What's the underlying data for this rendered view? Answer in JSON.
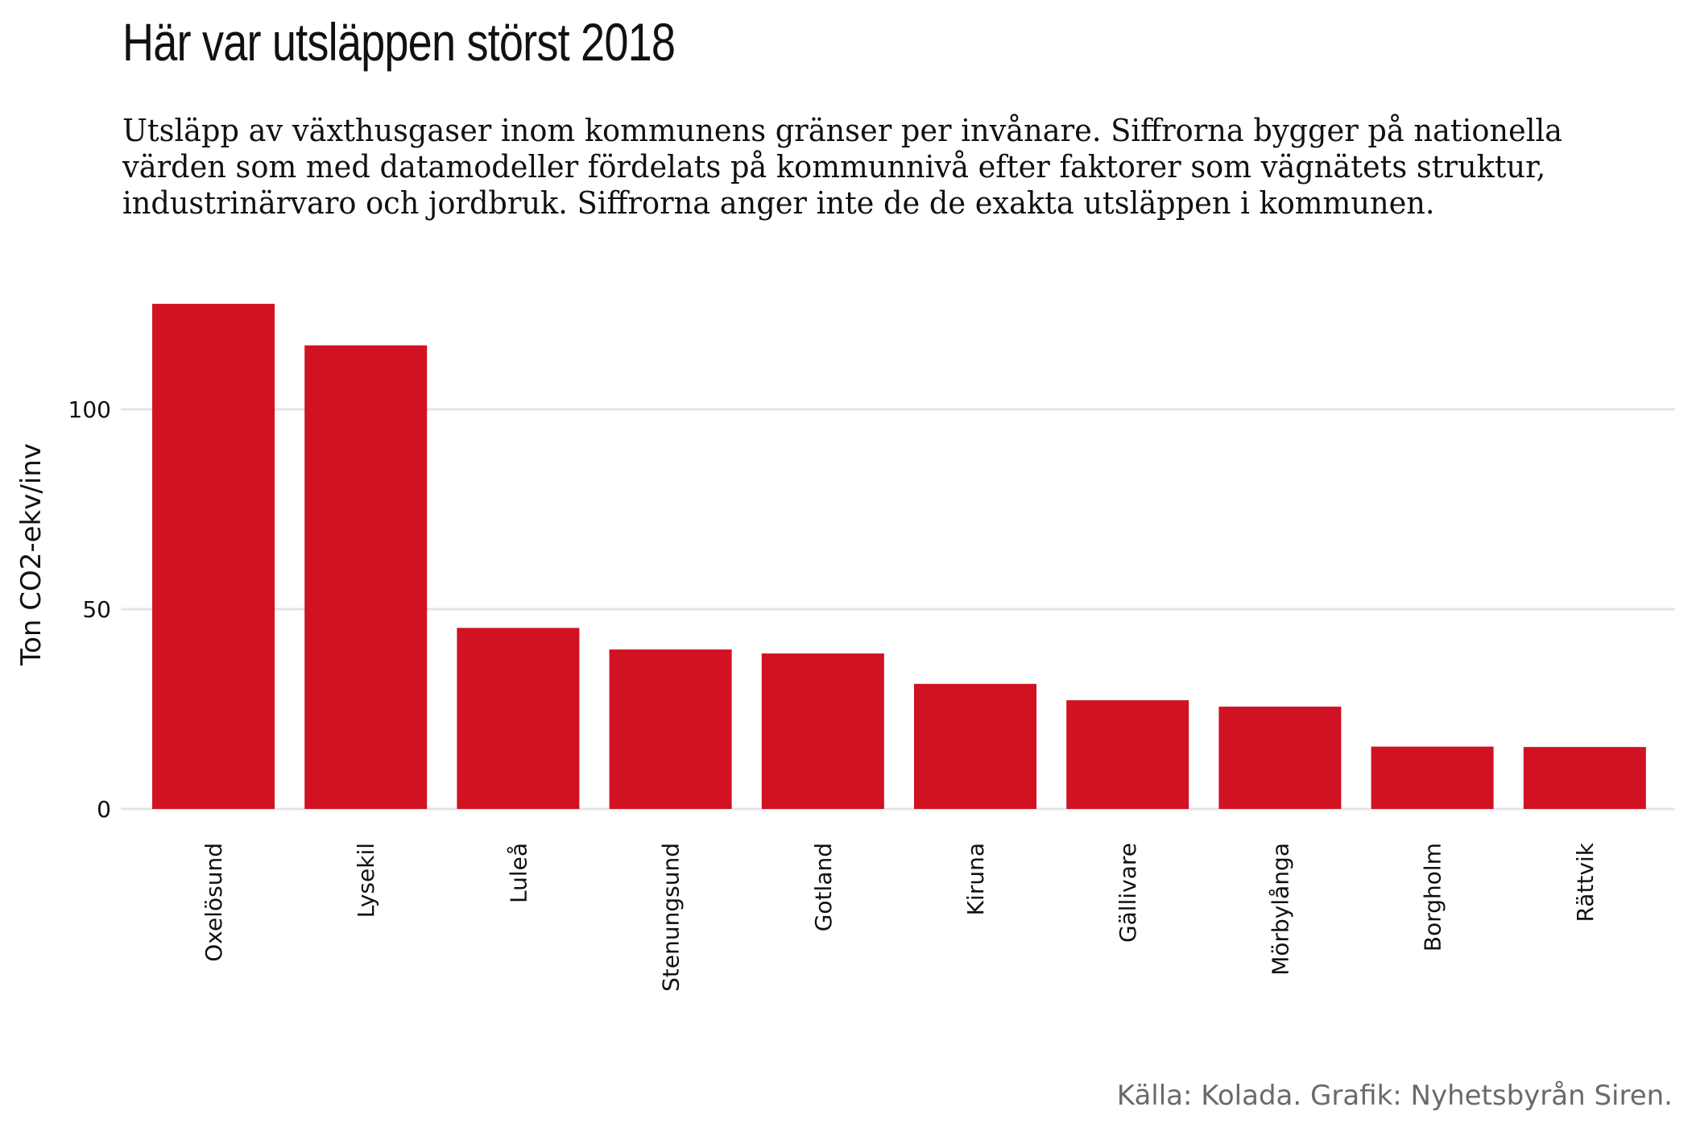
{
  "title": "Här var utsläppen störst 2018",
  "subtitle": [
    "Utsläpp av växthusgaser inom kommunens gränser per invånare. Siffrorna bygger på nationella",
    "värden som med datamodeller fördelats på kommunnivå efter faktorer som vägnätets struktur,",
    "industrinärvaro och jordbruk. Siffrorna anger inte de de exakta utsläppen i kommunen."
  ],
  "caption": "Källa: Kolada. Grafik: Nyhetsbyrån Siren.",
  "colors": {
    "bar": "#d01223",
    "grid": "#e4e4e4",
    "text": "#111111",
    "caption": "#6a6a6a"
  },
  "chart_data": {
    "type": "bar",
    "categories": [
      "Oxelösund",
      "Lysekil",
      "Luleå",
      "Stenungsund",
      "Gotland",
      "Kiruna",
      "Gällivare",
      "Mörbylånga",
      "Borgholm",
      "Rättvik"
    ],
    "values": [
      126.4,
      116.0,
      45.3,
      39.9,
      38.9,
      31.3,
      27.2,
      25.6,
      15.6,
      15.5
    ],
    "ylabel": "Ton CO2-ekv/inv",
    "xlabel": "",
    "yticks": [
      0,
      50,
      100
    ],
    "ylim": [
      0,
      130
    ],
    "grid": true,
    "x_label_rotation": -90
  }
}
